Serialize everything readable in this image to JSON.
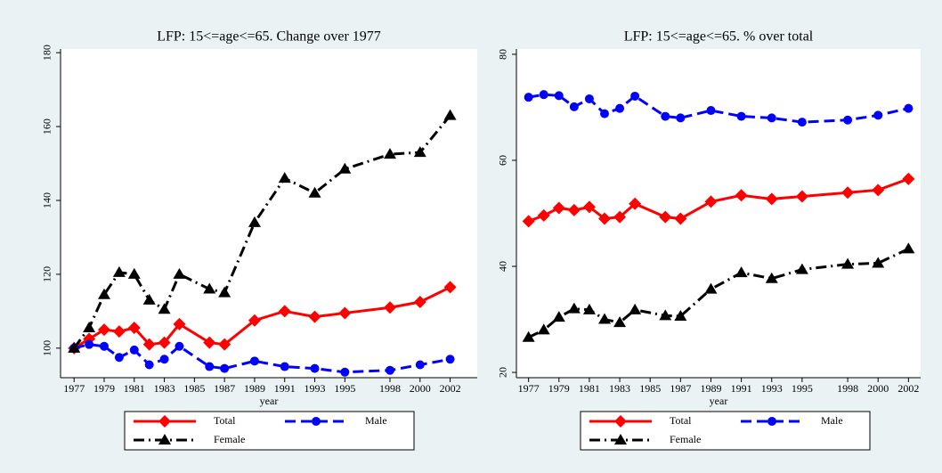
{
  "chart_data": [
    {
      "type": "line",
      "title": "LFP: 15<=age<=65. Change over 1977",
      "x_label": "year",
      "x": [
        1977,
        1978,
        1979,
        1980,
        1981,
        1982,
        1983,
        1984,
        1986,
        1987,
        1989,
        1991,
        1993,
        1995,
        1998,
        2000,
        2002
      ],
      "xlim": [
        1976.1,
        2003.8
      ],
      "xticks": [
        1977,
        1979,
        1981,
        1983,
        1985,
        1987,
        1989,
        1991,
        1993,
        1995,
        1998,
        2000,
        2002
      ],
      "ylim": [
        92,
        181
      ],
      "yticks": [
        100,
        120,
        140,
        160,
        180
      ],
      "series": [
        {
          "name": "Total",
          "color": "#ff0000",
          "marker": "diamond",
          "line_style": "solid",
          "values": [
            100,
            102.5,
            105,
            104.5,
            105.5,
            101,
            101.5,
            106.5,
            101.5,
            101,
            107.5,
            110,
            108.5,
            109.5,
            111,
            112.5,
            116.5
          ]
        },
        {
          "name": "Male",
          "color": "#0000ff",
          "marker": "circle",
          "line_style": "dashed",
          "values": [
            100,
            101,
            100.5,
            97.5,
            99.5,
            95.5,
            97,
            100.5,
            95,
            94.5,
            96.5,
            95,
            94.5,
            93.5,
            94,
            95.5,
            97
          ]
        },
        {
          "name": "Female",
          "color": "#000000",
          "marker": "triangle",
          "line_style": "dashdot",
          "values": [
            100,
            105.5,
            114.5,
            120.5,
            120,
            113,
            110.5,
            120,
            116,
            115,
            134,
            146,
            142,
            148.5,
            152.5,
            153,
            163
          ]
        }
      ]
    },
    {
      "type": "line",
      "title": "LFP: 15<=age<=65. % over total",
      "x_label": "year",
      "x": [
        1977,
        1978,
        1979,
        1980,
        1981,
        1982,
        1983,
        1984,
        1986,
        1987,
        1989,
        1991,
        1993,
        1995,
        1998,
        2000,
        2002
      ],
      "xlim": [
        1976.2,
        2002.8
      ],
      "xticks": [
        1977,
        1979,
        1981,
        1983,
        1985,
        1987,
        1989,
        1991,
        1993,
        1995,
        1998,
        2000,
        2002
      ],
      "ylim": [
        19,
        81
      ],
      "yticks": [
        20,
        40,
        60,
        80
      ],
      "series": [
        {
          "name": "Total",
          "color": "#ff0000",
          "marker": "diamond",
          "line_style": "solid",
          "values": [
            48.5,
            49.6,
            51,
            50.6,
            51.2,
            49,
            49.3,
            51.8,
            49.3,
            49,
            52.2,
            53.4,
            52.7,
            53.2,
            53.9,
            54.4,
            56.5
          ]
        },
        {
          "name": "Male",
          "color": "#0000ff",
          "marker": "circle",
          "line_style": "dashed",
          "values": [
            71.9,
            72.4,
            72.2,
            70.1,
            71.6,
            68.8,
            69.8,
            72.1,
            68.3,
            68,
            69.4,
            68.3,
            68,
            67.2,
            67.6,
            68.5,
            69.8
          ]
        },
        {
          "name": "Female",
          "color": "#000000",
          "marker": "triangle",
          "line_style": "dashdot",
          "values": [
            26.6,
            28,
            30.4,
            32,
            31.8,
            30,
            29.4,
            31.8,
            30.7,
            30.6,
            35.7,
            38.8,
            37.7,
            39.4,
            40.4,
            40.6,
            43.3
          ]
        }
      ]
    }
  ]
}
